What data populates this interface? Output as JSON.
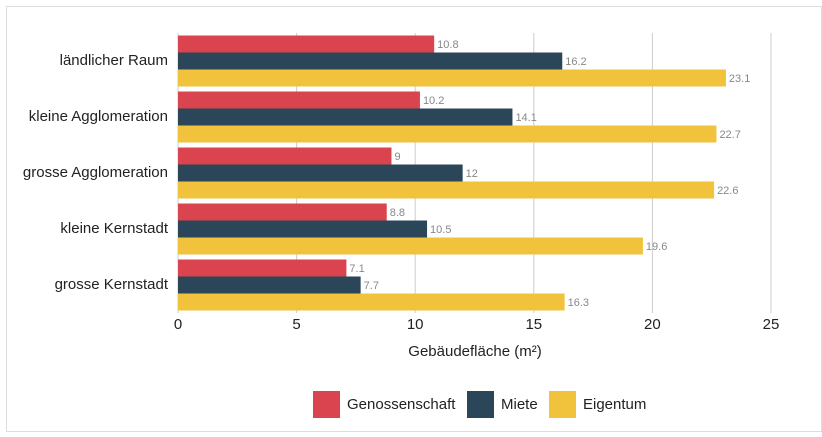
{
  "chart_data": {
    "type": "hbar",
    "categories": [
      "ländlicher Raum",
      "kleine Agglomeration",
      "grosse Agglomeration",
      "kleine Kernstadt",
      "grosse Kernstadt"
    ],
    "series": [
      {
        "name": "Genossenschaft",
        "color": "#d9444f",
        "values": [
          10.8,
          10.2,
          9,
          8.8,
          7.1
        ]
      },
      {
        "name": "Miete",
        "color": "#2a4658",
        "values": [
          16.2,
          14.1,
          12,
          10.5,
          7.7
        ]
      },
      {
        "name": "Eigentum",
        "color": "#f1c33c",
        "values": [
          23.1,
          22.7,
          22.6,
          19.6,
          16.3
        ]
      }
    ],
    "x_label": "Gebäudefläche (m²)",
    "xlim": [
      0,
      25
    ],
    "xticks": [
      0,
      5,
      10,
      15,
      20,
      25
    ],
    "grid": true,
    "legend": "bottom"
  }
}
